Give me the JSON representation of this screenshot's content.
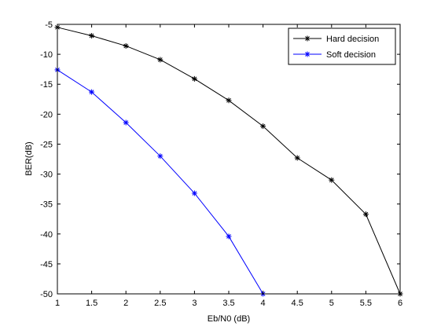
{
  "chart_data": {
    "type": "line",
    "title": "",
    "xlabel": "Eb/N0 (dB)",
    "ylabel": "BER(dB)",
    "xlim": [
      1,
      6
    ],
    "ylim": [
      -50,
      -5
    ],
    "xticks": [
      1,
      1.5,
      2,
      2.5,
      3,
      3.5,
      4,
      4.5,
      5,
      5.5,
      6
    ],
    "xtick_labels": [
      "1",
      "1.5",
      "2",
      "2.5",
      "3",
      "3.5",
      "4",
      "4.5",
      "5",
      "5.5",
      "6"
    ],
    "yticks": [
      -5,
      -10,
      -15,
      -20,
      -25,
      -30,
      -35,
      -40,
      -45,
      -50
    ],
    "ytick_labels": [
      "-5",
      "-10",
      "-15",
      "-20",
      "-25",
      "-30",
      "-35",
      "-40",
      "-45",
      "-50"
    ],
    "grid": false,
    "legend_position": "top-right",
    "series": [
      {
        "name": "Hard decision",
        "color": "#000000",
        "marker": "asterisk",
        "x": [
          1,
          1.5,
          2,
          2.5,
          3,
          3.5,
          4,
          4.5,
          5,
          5.5,
          6
        ],
        "y": [
          -5.5,
          -6.9,
          -8.6,
          -10.9,
          -14.1,
          -17.7,
          -22.0,
          -27.3,
          -31.0,
          -36.7,
          -50.0
        ]
      },
      {
        "name": "Soft decision",
        "color": "#0000ff",
        "marker": "asterisk",
        "x": [
          1,
          1.5,
          2,
          2.5,
          3,
          3.5,
          4
        ],
        "y": [
          -12.6,
          -16.3,
          -21.4,
          -27.0,
          -33.2,
          -40.4,
          -50.0
        ]
      }
    ]
  }
}
